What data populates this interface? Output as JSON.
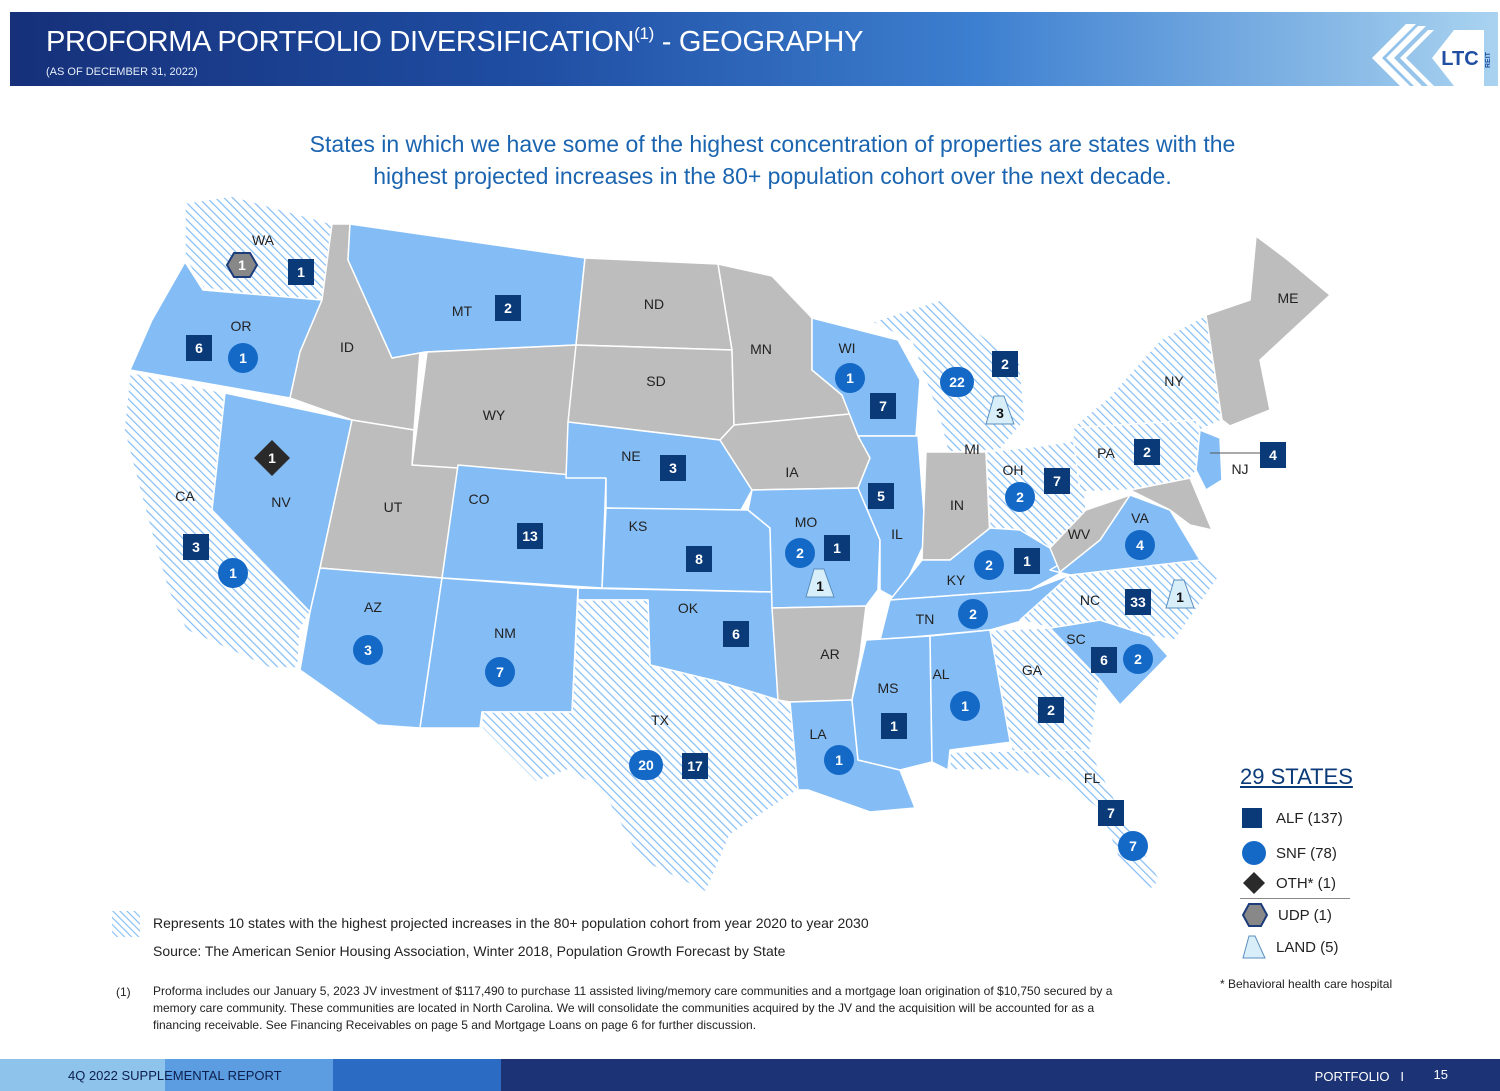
{
  "header": {
    "title": "PROFORMA PORTFOLIO DIVERSIFICATION",
    "title_sup": "(1)",
    "title_suffix": " - GEOGRAPHY",
    "subtitle": "(AS OF DECEMBER 31, 2022)",
    "logo_text": "LTC",
    "logo_sub": "REIT"
  },
  "headline": "States in which we have some of the highest concentration of properties are states with the highest projected increases in the 80+ population cohort over the next decade.",
  "colors": {
    "held_state": "#84bdf5",
    "other_state": "#bdbdbd",
    "alf": "#0b3a78",
    "snf": "#1469c7",
    "oth": "#2a2a2a",
    "udp": "#888888",
    "land": "#d8eef9"
  },
  "state_labels": [
    {
      "id": "WA",
      "text": "WA"
    },
    {
      "id": "OR",
      "text": "OR"
    },
    {
      "id": "CA",
      "text": "CA"
    },
    {
      "id": "NV",
      "text": "NV"
    },
    {
      "id": "ID",
      "text": "ID"
    },
    {
      "id": "MT",
      "text": "MT"
    },
    {
      "id": "WY",
      "text": "WY"
    },
    {
      "id": "UT",
      "text": "UT"
    },
    {
      "id": "CO",
      "text": "CO"
    },
    {
      "id": "AZ",
      "text": "AZ"
    },
    {
      "id": "NM",
      "text": "NM"
    },
    {
      "id": "ND",
      "text": "ND"
    },
    {
      "id": "SD",
      "text": "SD"
    },
    {
      "id": "NE",
      "text": "NE"
    },
    {
      "id": "KS",
      "text": "KS"
    },
    {
      "id": "OK",
      "text": "OK"
    },
    {
      "id": "TX",
      "text": "TX"
    },
    {
      "id": "MN",
      "text": "MN"
    },
    {
      "id": "IA",
      "text": "IA"
    },
    {
      "id": "MO",
      "text": "MO"
    },
    {
      "id": "AR",
      "text": "AR"
    },
    {
      "id": "LA",
      "text": "LA"
    },
    {
      "id": "WI",
      "text": "WI"
    },
    {
      "id": "IL",
      "text": "IL"
    },
    {
      "id": "MI",
      "text": "MI"
    },
    {
      "id": "IN",
      "text": "IN"
    },
    {
      "id": "OH",
      "text": "OH"
    },
    {
      "id": "KY",
      "text": "KY"
    },
    {
      "id": "TN",
      "text": "TN"
    },
    {
      "id": "MS",
      "text": "MS"
    },
    {
      "id": "AL",
      "text": "AL"
    },
    {
      "id": "GA",
      "text": "GA"
    },
    {
      "id": "FL",
      "text": "FL"
    },
    {
      "id": "SC",
      "text": "SC"
    },
    {
      "id": "NC",
      "text": "NC"
    },
    {
      "id": "VA",
      "text": "VA"
    },
    {
      "id": "WV",
      "text": "WV"
    },
    {
      "id": "PA",
      "text": "PA"
    },
    {
      "id": "NY",
      "text": "NY"
    },
    {
      "id": "NJ",
      "text": "NJ"
    },
    {
      "id": "ME",
      "text": "ME"
    }
  ],
  "markers": [
    {
      "id": "wa-udp",
      "type": "udp",
      "value": "1"
    },
    {
      "id": "wa-alf",
      "type": "alf",
      "value": "1"
    },
    {
      "id": "or-alf",
      "type": "alf",
      "value": "6"
    },
    {
      "id": "or-snf",
      "type": "snf",
      "value": "1"
    },
    {
      "id": "mt-alf",
      "type": "alf",
      "value": "2"
    },
    {
      "id": "nv-oth",
      "type": "oth",
      "value": "1"
    },
    {
      "id": "ca-alf",
      "type": "alf",
      "value": "3"
    },
    {
      "id": "ca-snf",
      "type": "snf",
      "value": "1"
    },
    {
      "id": "co-alf",
      "type": "alf",
      "value": "13"
    },
    {
      "id": "az-snf",
      "type": "snf",
      "value": "3"
    },
    {
      "id": "nm-snf",
      "type": "snf",
      "value": "7"
    },
    {
      "id": "ne-alf",
      "type": "alf",
      "value": "3"
    },
    {
      "id": "ks-alf",
      "type": "alf",
      "value": "8"
    },
    {
      "id": "ok-alf",
      "type": "alf",
      "value": "6"
    },
    {
      "id": "tx-snf",
      "type": "snf",
      "value": "20"
    },
    {
      "id": "tx-alf",
      "type": "alf",
      "value": "17"
    },
    {
      "id": "mo-snf",
      "type": "snf",
      "value": "2"
    },
    {
      "id": "mo-alf",
      "type": "alf",
      "value": "1"
    },
    {
      "id": "mo-land",
      "type": "land",
      "value": "1"
    },
    {
      "id": "wi-snf",
      "type": "snf",
      "value": "1"
    },
    {
      "id": "wi-alf",
      "type": "alf",
      "value": "7"
    },
    {
      "id": "il-alf",
      "type": "alf",
      "value": "5"
    },
    {
      "id": "mi-snf",
      "type": "snf",
      "value": "22"
    },
    {
      "id": "mi-alf",
      "type": "alf",
      "value": "2"
    },
    {
      "id": "mi-land",
      "type": "land",
      "value": "3"
    },
    {
      "id": "oh-snf",
      "type": "snf",
      "value": "2"
    },
    {
      "id": "oh-alf",
      "type": "alf",
      "value": "7"
    },
    {
      "id": "pa-alf",
      "type": "alf",
      "value": "2"
    },
    {
      "id": "nj-alf",
      "type": "alf",
      "value": "4"
    },
    {
      "id": "ky-snf",
      "type": "snf",
      "value": "2"
    },
    {
      "id": "ky-alf",
      "type": "alf",
      "value": "1"
    },
    {
      "id": "va-snf",
      "type": "snf",
      "value": "4"
    },
    {
      "id": "nc-alf",
      "type": "alf",
      "value": "33"
    },
    {
      "id": "nc-land",
      "type": "land",
      "value": "1"
    },
    {
      "id": "tn-snf",
      "type": "snf",
      "value": "2"
    },
    {
      "id": "sc-alf",
      "type": "alf",
      "value": "6"
    },
    {
      "id": "sc-snf",
      "type": "snf",
      "value": "2"
    },
    {
      "id": "ga-alf",
      "type": "alf",
      "value": "2"
    },
    {
      "id": "al-snf",
      "type": "snf",
      "value": "1"
    },
    {
      "id": "ms-alf",
      "type": "alf",
      "value": "1"
    },
    {
      "id": "la-snf",
      "type": "snf",
      "value": "1"
    },
    {
      "id": "fl-alf",
      "type": "alf",
      "value": "7"
    },
    {
      "id": "fl-snf",
      "type": "snf",
      "value": "7"
    }
  ],
  "legend": {
    "title": "29 STATES",
    "alf": "ALF (137)",
    "snf": "SNF (78)",
    "oth": "OTH* (1)",
    "udp": "UDP (1)",
    "land": "LAND (5)",
    "footnote": "* Behavioral health care hospital"
  },
  "hatch_note": "Represents 10 states with the highest projected increases in the 80+ population cohort from year 2020 to year 2030",
  "source": "Source:  The American Senior Housing Association, Winter 2018, Population Growth Forecast by State",
  "footnote": {
    "number": "(1)",
    "text": "Proforma includes our January 5, 2023 JV investment of $117,490 to purchase 11 assisted living/memory care communities and a mortgage loan origination of $10,750 secured by a memory care community. These communities are located in North Carolina. We will consolidate the communities acquired by the JV and the acquisition will be accounted for as a financing receivable. See Financing Receivables on page 5 and Mortgage Loans on page 6 for further discussion."
  },
  "footer": {
    "left": "4Q 2022 SUPPLEMENTAL REPORT",
    "section": "PORTFOLIO   I",
    "page": "15"
  }
}
